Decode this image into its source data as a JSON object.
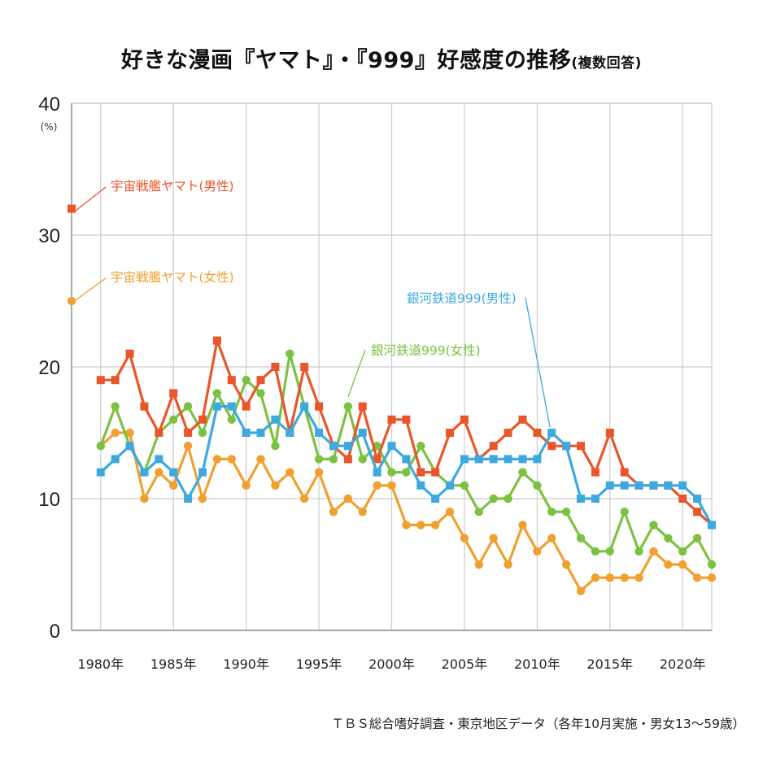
{
  "title": "好きな漫画『ヤマト』・『999』好感度の推移",
  "subtitle": "(複数回答)",
  "source": "ＴＢＳ総合嗜好調査・東京地区データ（各年10月実施・男女13～59歳）",
  "chart_data": {
    "type": "line",
    "ylabel_unit": "(%)",
    "ylim": [
      0,
      40
    ],
    "yticks": [
      0,
      10,
      20,
      30,
      40
    ],
    "xlim": [
      1978,
      2022
    ],
    "xticks": [
      {
        "value": 1980,
        "label": "1980年"
      },
      {
        "value": 1985,
        "label": "1985年"
      },
      {
        "value": 1990,
        "label": "1990年"
      },
      {
        "value": 1995,
        "label": "1995年"
      },
      {
        "value": 2000,
        "label": "2000年"
      },
      {
        "value": 2005,
        "label": "2005年"
      },
      {
        "value": 2010,
        "label": "2010年"
      },
      {
        "value": 2015,
        "label": "2015年"
      },
      {
        "value": 2020,
        "label": "2020年"
      }
    ],
    "grid": true,
    "series": [
      {
        "name": "宇宙戦艦ヤマト(女性)",
        "color": "#f0a030",
        "marker": "circle",
        "start": {
          "x": 1978,
          "y": 25
        },
        "x": [
          1980,
          1981,
          1982,
          1983,
          1984,
          1985,
          1986,
          1987,
          1988,
          1989,
          1990,
          1991,
          1992,
          1993,
          1994,
          1995,
          1996,
          1997,
          1998,
          1999,
          2000,
          2001,
          2002,
          2003,
          2004,
          2005,
          2006,
          2007,
          2008,
          2009,
          2010,
          2011,
          2012,
          2013,
          2014,
          2015,
          2016,
          2017,
          2018,
          2019,
          2020,
          2021,
          2022
        ],
        "values": [
          14,
          15,
          15,
          10,
          12,
          11,
          14,
          10,
          13,
          13,
          11,
          13,
          11,
          12,
          10,
          12,
          9,
          10,
          9,
          11,
          11,
          8,
          8,
          8,
          9,
          7,
          5,
          7,
          5,
          8,
          6,
          7,
          5,
          3,
          4,
          4,
          4,
          4,
          6,
          5,
          5,
          4,
          4
        ]
      },
      {
        "name": "銀河鉄道999(女性)",
        "color": "#7cc242",
        "marker": "circle",
        "x": [
          1980,
          1981,
          1982,
          1983,
          1984,
          1985,
          1986,
          1987,
          1988,
          1989,
          1990,
          1991,
          1992,
          1993,
          1994,
          1995,
          1996,
          1997,
          1998,
          1999,
          2000,
          2001,
          2002,
          2003,
          2004,
          2005,
          2006,
          2007,
          2008,
          2009,
          2010,
          2011,
          2012,
          2013,
          2014,
          2015,
          2016,
          2017,
          2018,
          2019,
          2020,
          2021,
          2022
        ],
        "values": [
          14,
          17,
          14,
          12,
          15,
          16,
          17,
          15,
          18,
          16,
          19,
          18,
          14,
          21,
          17,
          13,
          13,
          17,
          13,
          14,
          12,
          12,
          14,
          12,
          11,
          11,
          9,
          10,
          10,
          12,
          11,
          9,
          9,
          7,
          6,
          6,
          9,
          6,
          8,
          7,
          6,
          7,
          5
        ]
      },
      {
        "name": "宇宙戦艦ヤマト(男性)",
        "color": "#e8562a",
        "marker": "square",
        "start": {
          "x": 1978,
          "y": 32
        },
        "x": [
          1980,
          1981,
          1982,
          1983,
          1984,
          1985,
          1986,
          1987,
          1988,
          1989,
          1990,
          1991,
          1992,
          1993,
          1994,
          1995,
          1996,
          1997,
          1998,
          1999,
          2000,
          2001,
          2002,
          2003,
          2004,
          2005,
          2006,
          2007,
          2008,
          2009,
          2010,
          2011,
          2012,
          2013,
          2014,
          2015,
          2016,
          2017,
          2018,
          2019,
          2020,
          2021,
          2022
        ],
        "values": [
          19,
          19,
          21,
          17,
          15,
          18,
          15,
          16,
          22,
          19,
          17,
          19,
          20,
          15,
          20,
          17,
          14,
          13,
          17,
          13,
          16,
          16,
          12,
          12,
          15,
          16,
          13,
          14,
          15,
          16,
          15,
          14,
          14,
          14,
          12,
          15,
          12,
          11,
          11,
          11,
          10,
          9,
          8
        ]
      },
      {
        "name": "銀河鉄道999(男性)",
        "color": "#3ea8e0",
        "marker": "square",
        "x": [
          1980,
          1981,
          1982,
          1983,
          1984,
          1985,
          1986,
          1987,
          1988,
          1989,
          1990,
          1991,
          1992,
          1993,
          1994,
          1995,
          1996,
          1997,
          1998,
          1999,
          2000,
          2001,
          2002,
          2003,
          2004,
          2005,
          2006,
          2007,
          2008,
          2009,
          2010,
          2011,
          2012,
          2013,
          2014,
          2015,
          2016,
          2017,
          2018,
          2019,
          2020,
          2021,
          2022
        ],
        "values": [
          12,
          13,
          14,
          12,
          13,
          12,
          10,
          12,
          17,
          17,
          15,
          15,
          16,
          15,
          17,
          15,
          14,
          14,
          15,
          12,
          14,
          13,
          11,
          10,
          11,
          13,
          13,
          13,
          13,
          13,
          13,
          15,
          14,
          10,
          10,
          11,
          11,
          11,
          11,
          11,
          11,
          10,
          8
        ]
      }
    ],
    "annotations": [
      {
        "text": "宇宙戦艦ヤマト(男性)",
        "series": "宇宙戦艦ヤマト(男性)"
      },
      {
        "text": "宇宙戦艦ヤマト(女性)",
        "series": "宇宙戦艦ヤマト(女性)"
      },
      {
        "text": "銀河鉄道999(男性)",
        "series": "銀河鉄道999(男性)"
      },
      {
        "text": "銀河鉄道999(女性)",
        "series": "銀河鉄道999(女性)"
      }
    ]
  }
}
